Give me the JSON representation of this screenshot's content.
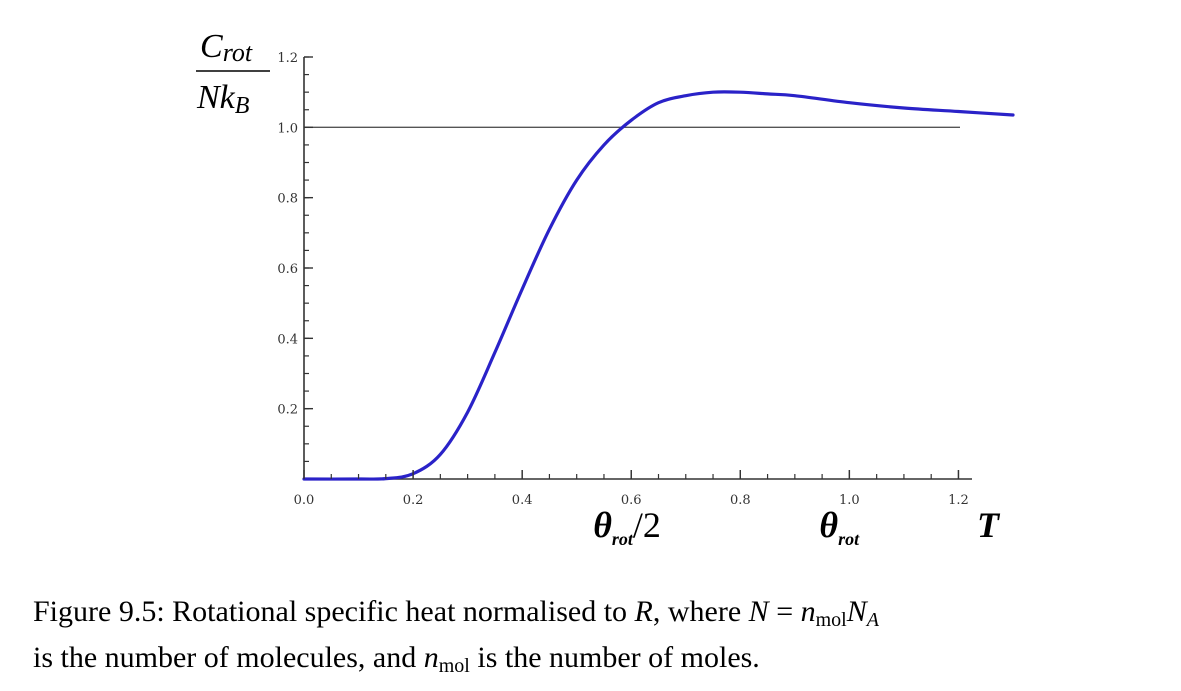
{
  "chart_data": {
    "type": "line",
    "ylabel": {
      "numerator": "C",
      "numerator_sub": "rot",
      "denominator": "Nk",
      "denominator_sub": "B"
    },
    "xlabel": "T",
    "xlim": [
      0,
      1.3
    ],
    "ylim": [
      0,
      1.2
    ],
    "x_ticks": [
      0.0,
      0.2,
      0.4,
      0.6,
      0.8,
      1.0,
      1.2
    ],
    "x_tick_labels": [
      "0.0",
      "0.2",
      "0.4",
      "0.6",
      "0.8",
      "1.0",
      "1.2"
    ],
    "y_ticks": [
      0.2,
      0.4,
      0.6,
      0.8,
      1.0,
      1.2
    ],
    "y_tick_labels": [
      "0.2",
      "0.4",
      "0.6",
      "0.8",
      "1.0",
      "1.2"
    ],
    "x_annotations": [
      {
        "x": 0.6,
        "text": "θ",
        "sub": "rot",
        "suffix": "/2"
      },
      {
        "x": 1.0,
        "text": "θ",
        "sub": "rot",
        "suffix": ""
      }
    ],
    "reference_line": {
      "y": 1.0
    },
    "grid": false,
    "series": [
      {
        "color": "#2a22c8",
        "x": [
          0.0,
          0.1,
          0.15,
          0.2,
          0.25,
          0.3,
          0.35,
          0.4,
          0.45,
          0.5,
          0.55,
          0.6,
          0.65,
          0.7,
          0.75,
          0.8,
          0.85,
          0.9,
          1.0,
          1.1,
          1.2,
          1.3
        ],
        "y": [
          0.0,
          0.0,
          0.001,
          0.015,
          0.07,
          0.19,
          0.36,
          0.54,
          0.71,
          0.85,
          0.95,
          1.02,
          1.07,
          1.09,
          1.1,
          1.1,
          1.095,
          1.09,
          1.07,
          1.055,
          1.045,
          1.035
        ]
      }
    ]
  },
  "caption": {
    "label": "Figure 9.5:",
    "text_1": " Rotational specific heat normalised to ",
    "var_R": "R",
    "text_2": ", where ",
    "var_N": "N",
    "equals": " = ",
    "var_n": "n",
    "sub_mol": "mol",
    "var_NA": "N",
    "sub_A": "A",
    "text_3": "is the number of molecules, and ",
    "var_n2": "n",
    "sub_mol2": "mol",
    "text_4": " is the number of moles."
  }
}
